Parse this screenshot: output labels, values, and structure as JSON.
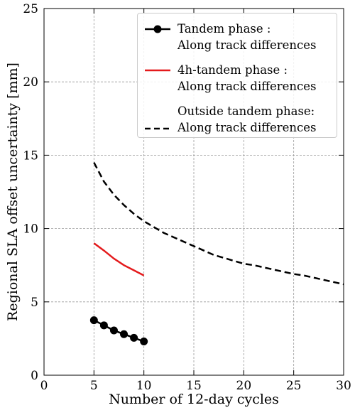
{
  "chart_data": {
    "type": "line",
    "x_label": "Number of 12-day cycles",
    "y_label": "Regional SLA offset uncertainty [mm]",
    "xlim": [
      0,
      30
    ],
    "xticks": [
      0,
      5,
      10,
      15,
      20,
      25,
      30
    ],
    "ylim": [
      0,
      25
    ],
    "yticks": [
      0,
      5,
      10,
      15,
      20,
      25
    ],
    "grid": true,
    "legend": "upper right",
    "series": [
      {
        "name": "Tandem phase :\nAlong track differences",
        "color": "#000000",
        "style": "solid-marker",
        "x": [
          5,
          6,
          7,
          8,
          9,
          10
        ],
        "values": [
          3.75,
          3.4,
          3.05,
          2.8,
          2.55,
          2.3
        ]
      },
      {
        "name": "4h-tandem phase :\nAlong track differences",
        "color": "#e41a1c",
        "style": "solid",
        "x": [
          5,
          6,
          7,
          8,
          9,
          10
        ],
        "values": [
          9.0,
          8.5,
          7.95,
          7.5,
          7.15,
          6.8
        ]
      },
      {
        "name": "Outside tandem phase:\nAlong track differences",
        "color": "#000000",
        "style": "dashed",
        "x": [
          5,
          6,
          7,
          8,
          9,
          10,
          11,
          12,
          13,
          14,
          15,
          16,
          17,
          18,
          19,
          20,
          21,
          22,
          23,
          24,
          25,
          26,
          27,
          28,
          29,
          30
        ],
        "values": [
          14.5,
          13.2,
          12.3,
          11.6,
          11.0,
          10.5,
          10.1,
          9.7,
          9.4,
          9.1,
          8.8,
          8.5,
          8.2,
          8.0,
          7.8,
          7.6,
          7.5,
          7.35,
          7.2,
          7.05,
          6.9,
          6.8,
          6.65,
          6.5,
          6.35,
          6.2
        ]
      }
    ]
  }
}
